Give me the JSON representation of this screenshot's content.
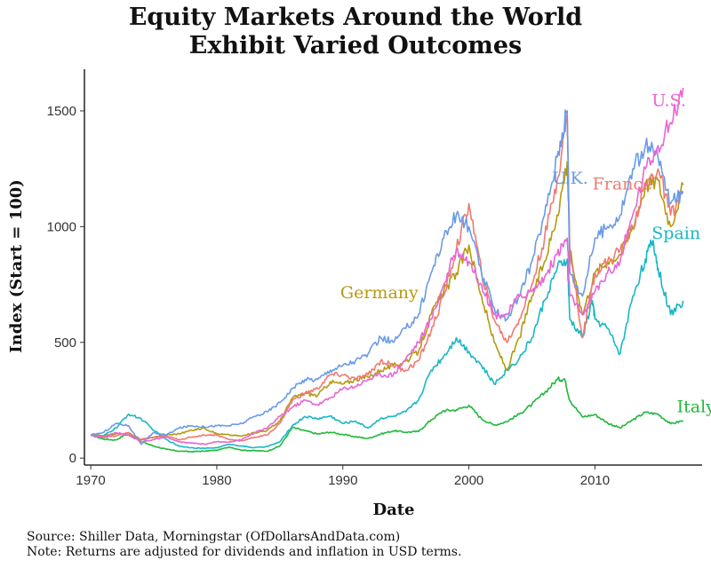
{
  "chart_data": {
    "type": "line",
    "title_lines": [
      "Equity Markets Around the World",
      "Exhibit Varied Outcomes"
    ],
    "xlabel": "Date",
    "ylabel": "Index (Start = 100)",
    "xlim": [
      1969.5,
      2018.5
    ],
    "ylim": [
      -30,
      1680
    ],
    "x_ticks": [
      1970,
      1980,
      1990,
      2000,
      2010
    ],
    "y_ticks": [
      0,
      500,
      1000,
      1500
    ],
    "grid": false,
    "legend": "direct labels on lines",
    "series": [
      {
        "name": "Italy",
        "color": "#1fb83a",
        "label_at": [
          2016.5,
          198
        ],
        "points": [
          [
            1970,
            100
          ],
          [
            1971,
            82
          ],
          [
            1972,
            78
          ],
          [
            1973,
            110
          ],
          [
            1974,
            72
          ],
          [
            1975,
            52
          ],
          [
            1976,
            38
          ],
          [
            1977,
            30
          ],
          [
            1978,
            28
          ],
          [
            1979,
            30
          ],
          [
            1980,
            34
          ],
          [
            1981,
            48
          ],
          [
            1982,
            34
          ],
          [
            1983,
            32
          ],
          [
            1984,
            30
          ],
          [
            1985,
            52
          ],
          [
            1986,
            132
          ],
          [
            1987,
            118
          ],
          [
            1988,
            104
          ],
          [
            1989,
            112
          ],
          [
            1990,
            102
          ],
          [
            1991,
            92
          ],
          [
            1992,
            85
          ],
          [
            1993,
            104
          ],
          [
            1994,
            118
          ],
          [
            1995,
            112
          ],
          [
            1996,
            115
          ],
          [
            1997,
            165
          ],
          [
            1998,
            205
          ],
          [
            1999,
            208
          ],
          [
            2000,
            228
          ],
          [
            2001,
            170
          ],
          [
            2002,
            142
          ],
          [
            2003,
            158
          ],
          [
            2004,
            190
          ],
          [
            2005,
            232
          ],
          [
            2006,
            282
          ],
          [
            2007,
            340
          ],
          [
            2007.6,
            342
          ],
          [
            2008,
            250
          ],
          [
            2009,
            178
          ],
          [
            2010,
            188
          ],
          [
            2011,
            152
          ],
          [
            2012,
            130
          ],
          [
            2013,
            165
          ],
          [
            2014,
            198
          ],
          [
            2015,
            190
          ],
          [
            2016,
            148
          ],
          [
            2017,
            162
          ]
        ]
      },
      {
        "name": "Spain",
        "color": "#17b8c4",
        "label_at": [
          2014.5,
          948
        ],
        "points": [
          [
            1970,
            100
          ],
          [
            1971,
            95
          ],
          [
            1972,
            130
          ],
          [
            1973,
            190
          ],
          [
            1974,
            170
          ],
          [
            1975,
            120
          ],
          [
            1976,
            80
          ],
          [
            1977,
            52
          ],
          [
            1978,
            45
          ],
          [
            1979,
            42
          ],
          [
            1980,
            45
          ],
          [
            1981,
            60
          ],
          [
            1982,
            52
          ],
          [
            1983,
            45
          ],
          [
            1984,
            50
          ],
          [
            1985,
            70
          ],
          [
            1986,
            140
          ],
          [
            1987,
            180
          ],
          [
            1988,
            170
          ],
          [
            1989,
            182
          ],
          [
            1990,
            150
          ],
          [
            1991,
            160
          ],
          [
            1992,
            130
          ],
          [
            1993,
            172
          ],
          [
            1994,
            180
          ],
          [
            1995,
            200
          ],
          [
            1996,
            250
          ],
          [
            1997,
            380
          ],
          [
            1998,
            440
          ],
          [
            1999,
            520
          ],
          [
            2000,
            460
          ],
          [
            2001,
            400
          ],
          [
            2002,
            320
          ],
          [
            2003,
            380
          ],
          [
            2004,
            430
          ],
          [
            2005,
            520
          ],
          [
            2006,
            680
          ],
          [
            2007,
            820
          ],
          [
            2007.8,
            860
          ],
          [
            2008,
            600
          ],
          [
            2009,
            520
          ],
          [
            2009.8,
            680
          ],
          [
            2010,
            600
          ],
          [
            2011,
            560
          ],
          [
            2012,
            450
          ],
          [
            2013,
            700
          ],
          [
            2014,
            860
          ],
          [
            2014.6,
            940
          ],
          [
            2015,
            820
          ],
          [
            2016,
            620
          ],
          [
            2017,
            680
          ]
        ]
      },
      {
        "name": "Germany",
        "color": "#b59a10",
        "label_at": [
          1989.8,
          690
        ],
        "points": [
          [
            1970,
            100
          ],
          [
            1971,
            95
          ],
          [
            1972,
            105
          ],
          [
            1973,
            100
          ],
          [
            1974,
            80
          ],
          [
            1975,
            90
          ],
          [
            1976,
            100
          ],
          [
            1977,
            105
          ],
          [
            1978,
            120
          ],
          [
            1979,
            130
          ],
          [
            1980,
            105
          ],
          [
            1981,
            100
          ],
          [
            1982,
            95
          ],
          [
            1983,
            110
          ],
          [
            1984,
            120
          ],
          [
            1985,
            160
          ],
          [
            1986,
            260
          ],
          [
            1987,
            280
          ],
          [
            1988,
            270
          ],
          [
            1989,
            330
          ],
          [
            1990,
            320
          ],
          [
            1991,
            340
          ],
          [
            1992,
            350
          ],
          [
            1993,
            380
          ],
          [
            1994,
            400
          ],
          [
            1995,
            420
          ],
          [
            1996,
            460
          ],
          [
            1997,
            620
          ],
          [
            1998,
            720
          ],
          [
            1999,
            800
          ],
          [
            2000,
            920
          ],
          [
            2001,
            700
          ],
          [
            2002,
            500
          ],
          [
            2003,
            380
          ],
          [
            2004,
            520
          ],
          [
            2005,
            700
          ],
          [
            2006,
            850
          ],
          [
            2007,
            1050
          ],
          [
            2007.8,
            1280
          ],
          [
            2008,
            900
          ],
          [
            2009,
            620
          ],
          [
            2010,
            800
          ],
          [
            2011,
            850
          ],
          [
            2012,
            880
          ],
          [
            2013,
            1000
          ],
          [
            2014,
            1180
          ],
          [
            2015,
            1200
          ],
          [
            2016,
            1000
          ],
          [
            2017,
            1180
          ]
        ]
      },
      {
        "name": "France",
        "color": "#f07a72",
        "label_at": [
          2009.8,
          1160
        ],
        "points": [
          [
            1970,
            100
          ],
          [
            1971,
            90
          ],
          [
            1972,
            95
          ],
          [
            1973,
            110
          ],
          [
            1974,
            80
          ],
          [
            1975,
            90
          ],
          [
            1976,
            95
          ],
          [
            1977,
            80
          ],
          [
            1978,
            90
          ],
          [
            1979,
            100
          ],
          [
            1980,
            100
          ],
          [
            1981,
            80
          ],
          [
            1982,
            75
          ],
          [
            1983,
            90
          ],
          [
            1984,
            100
          ],
          [
            1985,
            150
          ],
          [
            1986,
            250
          ],
          [
            1987,
            280
          ],
          [
            1988,
            300
          ],
          [
            1989,
            360
          ],
          [
            1990,
            360
          ],
          [
            1991,
            340
          ],
          [
            1992,
            360
          ],
          [
            1993,
            420
          ],
          [
            1994,
            400
          ],
          [
            1995,
            380
          ],
          [
            1996,
            420
          ],
          [
            1997,
            550
          ],
          [
            1998,
            700
          ],
          [
            1999,
            900
          ],
          [
            2000,
            1100
          ],
          [
            2001,
            800
          ],
          [
            2002,
            600
          ],
          [
            2003,
            500
          ],
          [
            2004,
            600
          ],
          [
            2005,
            750
          ],
          [
            2006,
            950
          ],
          [
            2007,
            1200
          ],
          [
            2007.8,
            1480
          ],
          [
            2008,
            900
          ],
          [
            2009,
            520
          ],
          [
            2010,
            800
          ],
          [
            2011,
            850
          ],
          [
            2012,
            900
          ],
          [
            2013,
            1000
          ],
          [
            2014,
            1180
          ],
          [
            2015,
            1250
          ],
          [
            2016,
            1050
          ],
          [
            2017,
            1150
          ]
        ]
      },
      {
        "name": "U.K.",
        "color": "#6a9be8",
        "label_at": [
          2006.6,
          1185
        ],
        "points": [
          [
            1970,
            100
          ],
          [
            1971,
            110
          ],
          [
            1972,
            150
          ],
          [
            1973,
            140
          ],
          [
            1974,
            60
          ],
          [
            1975,
            110
          ],
          [
            1976,
            100
          ],
          [
            1977,
            130
          ],
          [
            1978,
            140
          ],
          [
            1979,
            135
          ],
          [
            1980,
            140
          ],
          [
            1981,
            140
          ],
          [
            1982,
            150
          ],
          [
            1983,
            180
          ],
          [
            1984,
            200
          ],
          [
            1985,
            240
          ],
          [
            1986,
            300
          ],
          [
            1987,
            340
          ],
          [
            1988,
            340
          ],
          [
            1989,
            380
          ],
          [
            1990,
            400
          ],
          [
            1991,
            420
          ],
          [
            1992,
            450
          ],
          [
            1993,
            520
          ],
          [
            1994,
            500
          ],
          [
            1995,
            560
          ],
          [
            1996,
            620
          ],
          [
            1997,
            800
          ],
          [
            1998,
            950
          ],
          [
            1999,
            1050
          ],
          [
            2000,
            1000
          ],
          [
            2001,
            800
          ],
          [
            2002,
            650
          ],
          [
            2003,
            600
          ],
          [
            2004,
            700
          ],
          [
            2005,
            850
          ],
          [
            2006,
            1050
          ],
          [
            2007,
            1300
          ],
          [
            2007.8,
            1500
          ],
          [
            2008,
            800
          ],
          [
            2009,
            700
          ],
          [
            2010,
            950
          ],
          [
            2011,
            1000
          ],
          [
            2012,
            1050
          ],
          [
            2013,
            1250
          ],
          [
            2014,
            1350
          ],
          [
            2015,
            1300
          ],
          [
            2016,
            1100
          ],
          [
            2017,
            1150
          ]
        ]
      },
      {
        "name": "U.S.",
        "color": "#e766d6",
        "label_at": [
          2014.5,
          1520
        ],
        "points": [
          [
            1970,
            100
          ],
          [
            1971,
            90
          ],
          [
            1972,
            110
          ],
          [
            1973,
            100
          ],
          [
            1974,
            70
          ],
          [
            1975,
            80
          ],
          [
            1976,
            90
          ],
          [
            1977,
            70
          ],
          [
            1978,
            65
          ],
          [
            1979,
            60
          ],
          [
            1980,
            70
          ],
          [
            1981,
            70
          ],
          [
            1982,
            80
          ],
          [
            1983,
            110
          ],
          [
            1984,
            130
          ],
          [
            1985,
            180
          ],
          [
            1986,
            220
          ],
          [
            1987,
            250
          ],
          [
            1988,
            230
          ],
          [
            1989,
            260
          ],
          [
            1990,
            300
          ],
          [
            1991,
            310
          ],
          [
            1992,
            340
          ],
          [
            1993,
            360
          ],
          [
            1994,
            360
          ],
          [
            1995,
            430
          ],
          [
            1996,
            500
          ],
          [
            1997,
            600
          ],
          [
            1998,
            750
          ],
          [
            1999,
            900
          ],
          [
            2000,
            850
          ],
          [
            2001,
            750
          ],
          [
            2002,
            620
          ],
          [
            2003,
            620
          ],
          [
            2004,
            700
          ],
          [
            2005,
            720
          ],
          [
            2006,
            780
          ],
          [
            2007,
            880
          ],
          [
            2007.8,
            950
          ],
          [
            2008,
            700
          ],
          [
            2009,
            620
          ],
          [
            2010,
            720
          ],
          [
            2011,
            800
          ],
          [
            2012,
            850
          ],
          [
            2013,
            1050
          ],
          [
            2014,
            1250
          ],
          [
            2015,
            1350
          ],
          [
            2016,
            1450
          ],
          [
            2017,
            1600
          ]
        ]
      }
    ]
  },
  "captions": {
    "source": "Source:  Shiller Data, Morningstar (OfDollarsAndData.com)",
    "note": "Note:  Returns are adjusted for dividends and inflation in USD terms."
  }
}
